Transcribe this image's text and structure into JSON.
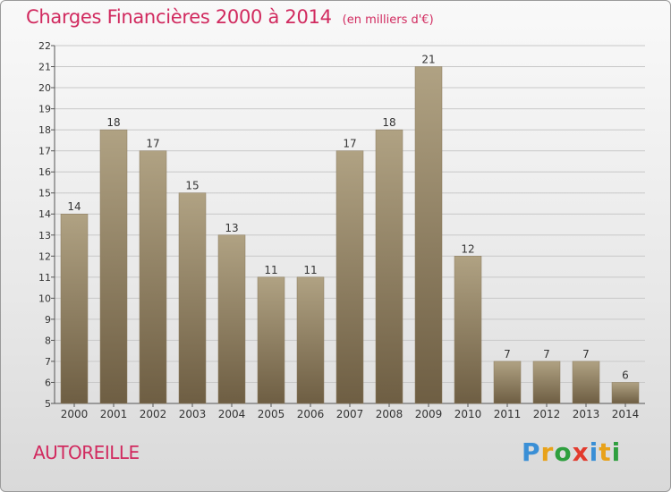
{
  "title": "Charges Financières 2000 à 2014",
  "unit_label": "(en milliers d'€)",
  "commune": "AUTOREILLE",
  "brand": {
    "text": "Proxiti",
    "letter_colors": [
      "#3a8fd6",
      "#e8a21a",
      "#2e9f3e",
      "#e23b2e",
      "#3a8fd6",
      "#e8a21a",
      "#2e9f3e"
    ]
  },
  "colors": {
    "title": "#d12a5f",
    "bar_top": "#b0a283",
    "bar_bottom": "#6e5e43",
    "grid": "#c8c8c8",
    "axis": "#555555"
  },
  "chart_data": {
    "type": "bar",
    "categories": [
      "2000",
      "2001",
      "2002",
      "2003",
      "2004",
      "2005",
      "2006",
      "2007",
      "2008",
      "2009",
      "2010",
      "2011",
      "2012",
      "2013",
      "2014"
    ],
    "values": [
      14,
      18,
      17,
      15,
      13,
      11,
      11,
      17,
      18,
      21,
      12,
      7,
      7,
      7,
      6
    ],
    "ylim": [
      5,
      22
    ],
    "yticks": [
      5,
      6,
      7,
      8,
      9,
      10,
      11,
      12,
      13,
      14,
      15,
      16,
      17,
      18,
      19,
      20,
      21,
      22
    ],
    "grid": true,
    "data_labels": true
  }
}
